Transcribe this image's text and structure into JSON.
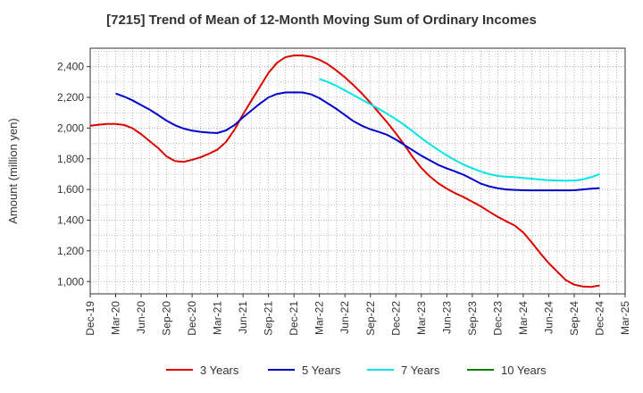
{
  "chart_data": {
    "type": "line",
    "title": "[7215]  Trend of Mean of 12-Month Moving Sum of Ordinary Incomes",
    "xlabel": "",
    "ylabel": "Amount (million yen)",
    "ylim": [
      920,
      2520
    ],
    "yticks": [
      1000,
      1200,
      1400,
      1600,
      1800,
      2000,
      2200,
      2400
    ],
    "ytick_labels": [
      "1,000",
      "1,200",
      "1,400",
      "1,600",
      "1,800",
      "2,000",
      "2,200",
      "2,400"
    ],
    "x_start": "Dec-19",
    "x_range_months": [
      0,
      63
    ],
    "xtick_labels": [
      "Dec-19",
      "Mar-20",
      "Jun-20",
      "Sep-20",
      "Dec-20",
      "Mar-21",
      "Jun-21",
      "Sep-21",
      "Dec-21",
      "Mar-22",
      "Jun-22",
      "Sep-22",
      "Dec-22",
      "Mar-23",
      "Jun-23",
      "Sep-23",
      "Dec-23",
      "Mar-24",
      "Jun-24",
      "Sep-24",
      "Dec-24",
      "Mar-25"
    ],
    "grid": true,
    "legend_position": "bottom",
    "series": [
      {
        "name": "3 Years",
        "color": "#dd0000",
        "x_months": [
          0,
          1,
          2,
          3,
          4,
          5,
          6,
          7,
          8,
          9,
          10,
          11,
          12,
          13,
          14,
          15,
          16,
          17,
          18,
          19,
          20,
          21,
          22,
          23,
          24,
          25,
          26,
          27,
          28,
          29,
          30,
          31,
          32,
          33,
          34,
          35,
          36,
          37,
          38,
          39,
          40,
          41,
          42,
          43,
          44,
          45,
          46,
          47,
          48,
          49,
          50,
          51,
          52,
          53,
          54,
          55,
          56,
          57,
          58,
          59,
          60
        ],
        "values": [
          2015,
          2022,
          2027,
          2027,
          2020,
          1998,
          1960,
          1915,
          1870,
          1815,
          1785,
          1780,
          1793,
          1810,
          1833,
          1860,
          1910,
          1990,
          2090,
          2180,
          2270,
          2360,
          2425,
          2462,
          2473,
          2473,
          2465,
          2445,
          2415,
          2375,
          2330,
          2280,
          2225,
          2165,
          2100,
          2035,
          1965,
          1890,
          1810,
          1740,
          1685,
          1640,
          1605,
          1575,
          1550,
          1520,
          1490,
          1455,
          1422,
          1393,
          1365,
          1320,
          1255,
          1185,
          1120,
          1065,
          1010,
          980,
          968,
          965,
          975
        ]
      },
      {
        "name": "5 Years",
        "color": "#0000cc",
        "x_months": [
          3,
          4,
          5,
          6,
          7,
          8,
          9,
          10,
          11,
          12,
          13,
          14,
          15,
          16,
          17,
          18,
          19,
          20,
          21,
          22,
          23,
          24,
          25,
          26,
          27,
          28,
          29,
          30,
          31,
          32,
          33,
          34,
          35,
          36,
          37,
          38,
          39,
          40,
          41,
          42,
          43,
          44,
          45,
          46,
          47,
          48,
          49,
          50,
          51,
          52,
          53,
          54,
          55,
          56,
          57,
          58,
          59,
          60
        ],
        "values": [
          2225,
          2205,
          2180,
          2150,
          2120,
          2085,
          2048,
          2018,
          1997,
          1983,
          1975,
          1970,
          1968,
          1985,
          2020,
          2070,
          2115,
          2160,
          2200,
          2222,
          2232,
          2233,
          2232,
          2220,
          2195,
          2160,
          2125,
          2085,
          2045,
          2015,
          1992,
          1975,
          1955,
          1925,
          1890,
          1855,
          1820,
          1790,
          1760,
          1737,
          1717,
          1695,
          1667,
          1638,
          1620,
          1608,
          1600,
          1597,
          1595,
          1594,
          1594,
          1594,
          1594,
          1594,
          1595,
          1600,
          1605,
          1609
        ]
      },
      {
        "name": "7 Years",
        "color": "#00e5e5",
        "x_months": [
          27,
          28,
          29,
          30,
          31,
          32,
          33,
          34,
          35,
          36,
          37,
          38,
          39,
          40,
          41,
          42,
          43,
          44,
          45,
          46,
          47,
          48,
          49,
          50,
          51,
          52,
          53,
          54,
          55,
          56,
          57,
          58,
          59,
          60
        ],
        "values": [
          2320,
          2300,
          2275,
          2245,
          2215,
          2185,
          2155,
          2125,
          2092,
          2058,
          2020,
          1978,
          1935,
          1895,
          1857,
          1822,
          1790,
          1762,
          1738,
          1717,
          1700,
          1688,
          1683,
          1680,
          1675,
          1670,
          1665,
          1660,
          1658,
          1657,
          1658,
          1665,
          1680,
          1700
        ]
      },
      {
        "name": "10 Years",
        "color": "#008000",
        "x_months": [],
        "values": []
      }
    ]
  }
}
